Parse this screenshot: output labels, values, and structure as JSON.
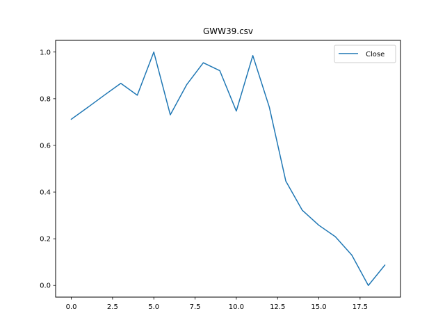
{
  "chart_data": {
    "type": "line",
    "title": "GWW39.csv",
    "xlabel": "",
    "ylabel": "",
    "xlim": [
      -0.95,
      19.95
    ],
    "ylim": [
      -0.05,
      1.05
    ],
    "xticks": [
      0,
      2.5,
      5,
      7.5,
      10,
      12.5,
      15,
      17.5
    ],
    "xtick_labels": [
      "0.0",
      "2.5",
      "5.0",
      "7.5",
      "10.0",
      "12.5",
      "15.0",
      "17.5"
    ],
    "yticks": [
      0,
      0.2,
      0.4,
      0.6,
      0.8,
      1.0
    ],
    "ytick_labels": [
      "0.0",
      "0.2",
      "0.4",
      "0.6",
      "0.8",
      "1.0"
    ],
    "grid": false,
    "legend": "top-right",
    "series": [
      {
        "name": "Close",
        "color": "#1f77b4",
        "x": [
          0,
          1,
          2,
          3,
          4,
          5,
          6,
          7,
          8,
          9,
          10,
          11,
          12,
          13,
          14,
          15,
          16,
          17,
          18,
          19
        ],
        "values": [
          0.712,
          0.763,
          0.815,
          0.866,
          0.815,
          1.0,
          0.731,
          0.861,
          0.954,
          0.92,
          0.747,
          0.985,
          0.764,
          0.447,
          0.322,
          0.258,
          0.209,
          0.13,
          0.0,
          0.087
        ]
      }
    ]
  }
}
